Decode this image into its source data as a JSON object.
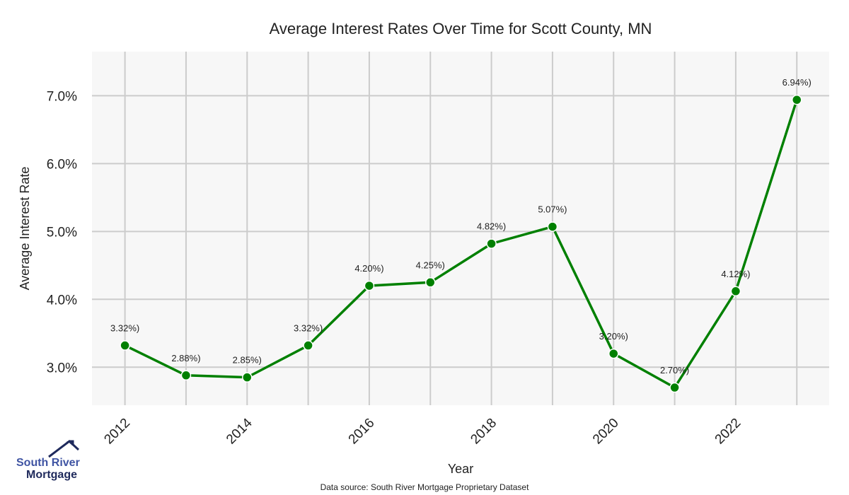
{
  "chart_data": {
    "type": "line",
    "title": "Average Interest Rates Over Time for Scott County, MN",
    "xlabel": "Year",
    "ylabel": "Average Interest Rate",
    "x": [
      2012,
      2013,
      2014,
      2015,
      2016,
      2017,
      2018,
      2019,
      2020,
      2021,
      2022,
      2023
    ],
    "series": [
      {
        "name": "Average Interest Rate",
        "values": [
          3.32,
          2.88,
          2.85,
          3.32,
          4.2,
          4.25,
          4.82,
          5.07,
          3.2,
          2.7,
          4.12,
          6.94
        ],
        "labels": [
          "3.32%)",
          "2.88%)",
          "2.85%)",
          "3.32%)",
          "4.20%)",
          "4.25%)",
          "4.82%)",
          "5.07%)",
          "3.20%)",
          "2.70%)",
          "4.12%)",
          "6.94%)"
        ],
        "color": "#008000"
      }
    ],
    "xticks": [
      2012,
      2014,
      2016,
      2018,
      2020,
      2022
    ],
    "xtick_labels": [
      "2012",
      "2014",
      "2016",
      "2018",
      "2020",
      "2022"
    ],
    "yticks": [
      3.0,
      4.0,
      5.0,
      6.0,
      7.0
    ],
    "ytick_labels": [
      "3.0%",
      "4.0%",
      "5.0%",
      "6.0%",
      "7.0%"
    ],
    "xlim": [
      2011.46,
      2023.53
    ],
    "ylim": [
      2.44,
      7.65
    ],
    "grid": true,
    "background": "#f7f7f7",
    "grid_color": "#cccccc"
  },
  "footer": {
    "source": "Data source: South River Mortgage Proprietary Dataset"
  },
  "logo": {
    "line1": "South River",
    "line2": "Mortgage"
  }
}
